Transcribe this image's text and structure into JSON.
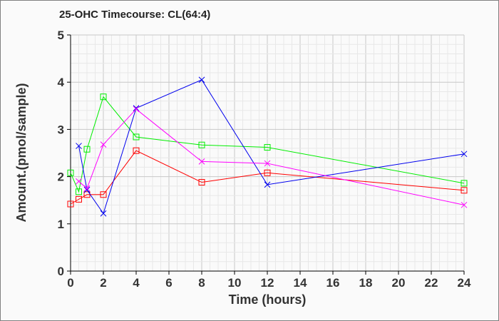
{
  "chart_data": {
    "type": "line",
    "title": "25-OHC Timecourse: CL(64:4)",
    "xlabel": "Time (hours)",
    "ylabel": "Amount.(pmol/sample)",
    "xlim": [
      0,
      24
    ],
    "ylim": [
      0,
      5
    ],
    "xticks": [
      "0",
      "2",
      "4",
      "6",
      "8",
      "10",
      "12",
      "14",
      "16",
      "18",
      "20",
      "22",
      "24"
    ],
    "yticks": [
      "0",
      "1",
      "2",
      "3",
      "4",
      "5"
    ],
    "grid": true,
    "series": [
      {
        "name": "red",
        "color": "#ff0000",
        "marker": "square",
        "x": [
          0,
          0.5,
          1,
          2,
          4,
          8,
          12,
          24
        ],
        "y": [
          1.42,
          1.52,
          1.62,
          1.62,
          2.55,
          1.88,
          2.08,
          1.71
        ]
      },
      {
        "name": "green",
        "color": "#00ee00",
        "marker": "square",
        "x": [
          0,
          0.5,
          1,
          2,
          4,
          8,
          12,
          24
        ],
        "y": [
          2.08,
          1.68,
          2.58,
          3.69,
          2.84,
          2.67,
          2.62,
          1.86
        ]
      },
      {
        "name": "blue",
        "color": "#0000ee",
        "marker": "x",
        "x": [
          0.5,
          1,
          2,
          4,
          8,
          12,
          24
        ],
        "y": [
          2.65,
          1.72,
          1.22,
          3.45,
          4.05,
          1.83,
          2.48
        ]
      },
      {
        "name": "magenta",
        "color": "#ff00ff",
        "marker": "x",
        "x": [
          0.5,
          1,
          2,
          4,
          8,
          12,
          24
        ],
        "y": [
          1.9,
          1.75,
          2.68,
          3.43,
          2.32,
          2.28,
          1.4
        ]
      }
    ]
  }
}
